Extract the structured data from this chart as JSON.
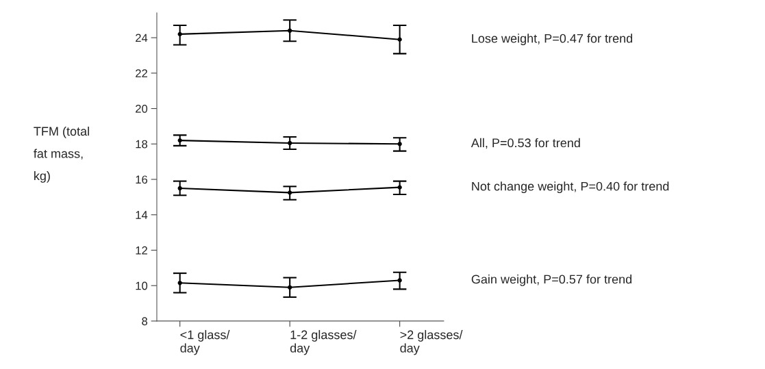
{
  "chart_data": {
    "type": "line",
    "ylabel": "TFM (total\nfat mass,\nkg)",
    "categories": [
      "<1 glass/\nday",
      "1-2 glasses/\nday",
      ">2 glasses/\nday"
    ],
    "series": [
      {
        "name": "Lose weight, P=0.47 for trend",
        "color": "#000000",
        "values": [
          24.2,
          24.4,
          23.9
        ],
        "errors": [
          [
            23.6,
            24.7
          ],
          [
            23.8,
            25.0
          ],
          [
            23.1,
            24.7
          ]
        ]
      },
      {
        "name": "All, P=0.53 for trend",
        "color": "#000000",
        "values": [
          18.2,
          18.05,
          18.0
        ],
        "errors": [
          [
            17.9,
            18.5
          ],
          [
            17.7,
            18.4
          ],
          [
            17.6,
            18.35
          ]
        ]
      },
      {
        "name": "Not change weight, P=0.40 for trend",
        "color": "#000000",
        "values": [
          15.5,
          15.25,
          15.55
        ],
        "errors": [
          [
            15.1,
            15.9
          ],
          [
            14.85,
            15.6
          ],
          [
            15.15,
            15.9
          ]
        ]
      },
      {
        "name": "Gain weight, P=0.57 for trend",
        "color": "#000000",
        "values": [
          10.15,
          9.9,
          10.3
        ],
        "errors": [
          [
            9.6,
            10.7
          ],
          [
            9.35,
            10.45
          ],
          [
            9.8,
            10.75
          ]
        ]
      }
    ],
    "ylim": [
      8,
      25.4
    ],
    "yticks": [
      8,
      10,
      12,
      14,
      16,
      18,
      20,
      22,
      24
    ],
    "marker": "circle",
    "line_style": "solid",
    "grid": false,
    "legend": false
  }
}
